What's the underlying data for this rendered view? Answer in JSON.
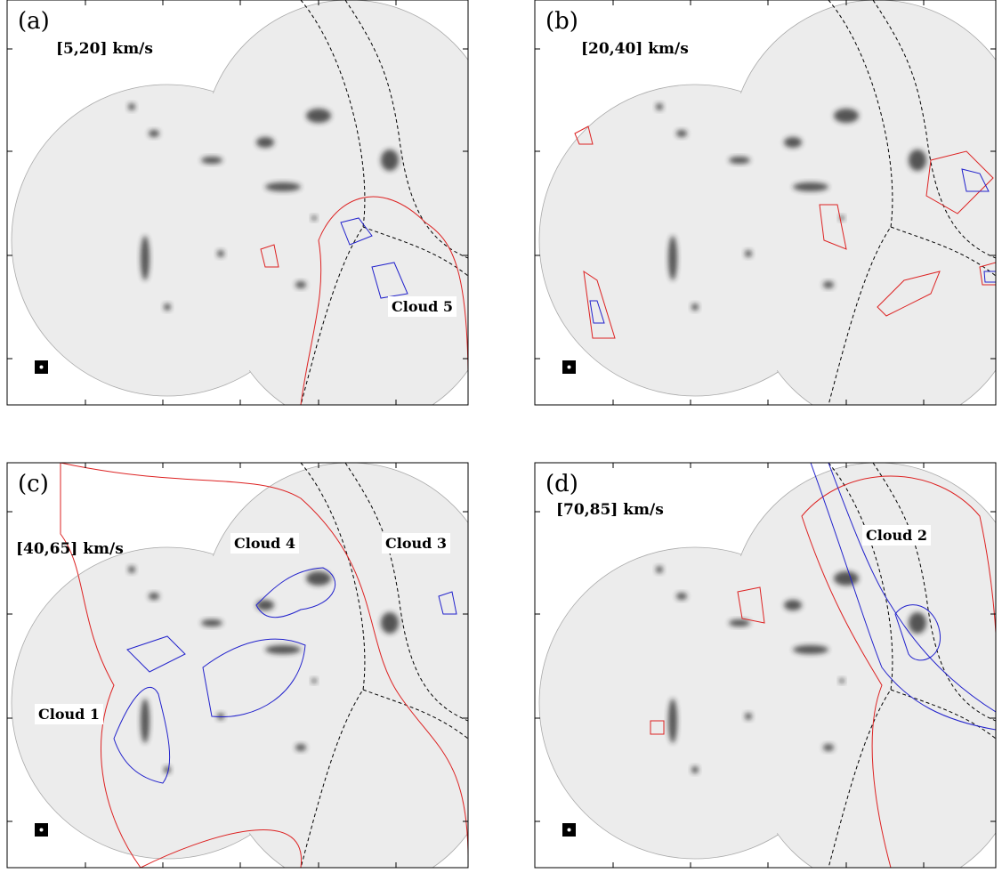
{
  "panels": [
    {
      "label": "(a)",
      "velocity": "[5,20] km/s",
      "annotations": [
        "Cloud 5"
      ]
    },
    {
      "label": "(b)",
      "velocity": "[20,40] km/s",
      "annotations": []
    },
    {
      "label": "(c)",
      "velocity": "[40,65] km/s",
      "annotations": [
        "Cloud 4",
        "Cloud 3",
        "Cloud 1"
      ]
    },
    {
      "label": "(d)",
      "velocity": "[70,85] km/s",
      "annotations": [
        "Cloud 2"
      ]
    }
  ]
}
